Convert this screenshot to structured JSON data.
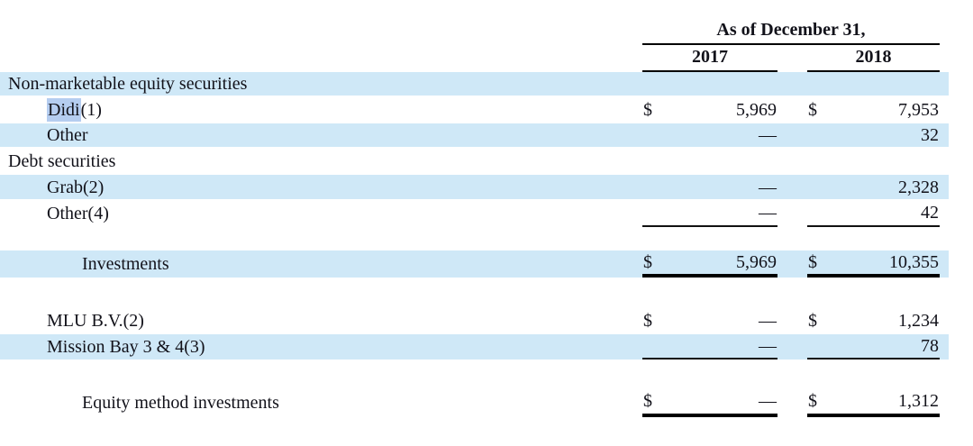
{
  "colors": {
    "row_highlight": "#cfe8f7",
    "text_selection": "#b5cdf0",
    "text": "#12121a",
    "rule": "#000000"
  },
  "header": {
    "title": "As of December 31,",
    "year_2017": "2017",
    "year_2018": "2018"
  },
  "rows": [
    {
      "label": "Non-marketable equity securities",
      "c2017": {
        "currency": "",
        "value": ""
      },
      "c2018": {
        "currency": "",
        "value": ""
      }
    },
    {
      "label_selected": "Didi",
      "label_rest": "(1)",
      "c2017": {
        "currency": "$",
        "value": "5,969"
      },
      "c2018": {
        "currency": "$",
        "value": "7,953"
      }
    },
    {
      "label": "Other",
      "c2017": {
        "currency": "",
        "value": "—"
      },
      "c2018": {
        "currency": "",
        "value": "32"
      }
    },
    {
      "label": "Debt securities",
      "c2017": {
        "currency": "",
        "value": ""
      },
      "c2018": {
        "currency": "",
        "value": ""
      }
    },
    {
      "label": "Grab(2)",
      "c2017": {
        "currency": "",
        "value": "—"
      },
      "c2018": {
        "currency": "",
        "value": "2,328"
      }
    },
    {
      "label": "Other(4)",
      "c2017": {
        "currency": "",
        "value": "—"
      },
      "c2018": {
        "currency": "",
        "value": "42"
      }
    },
    {
      "label": "Investments",
      "c2017": {
        "currency": "$",
        "value": "5,969"
      },
      "c2018": {
        "currency": "$",
        "value": "10,355"
      }
    },
    {
      "label": "MLU B.V.(2)",
      "c2017": {
        "currency": "$",
        "value": "—"
      },
      "c2018": {
        "currency": "$",
        "value": "1,234"
      }
    },
    {
      "label": "Mission Bay 3 & 4(3)",
      "c2017": {
        "currency": "",
        "value": "—"
      },
      "c2018": {
        "currency": "",
        "value": "78"
      }
    },
    {
      "label": "Equity method investments",
      "c2017": {
        "currency": "$",
        "value": "—"
      },
      "c2018": {
        "currency": "$",
        "value": "1,312"
      }
    }
  ]
}
